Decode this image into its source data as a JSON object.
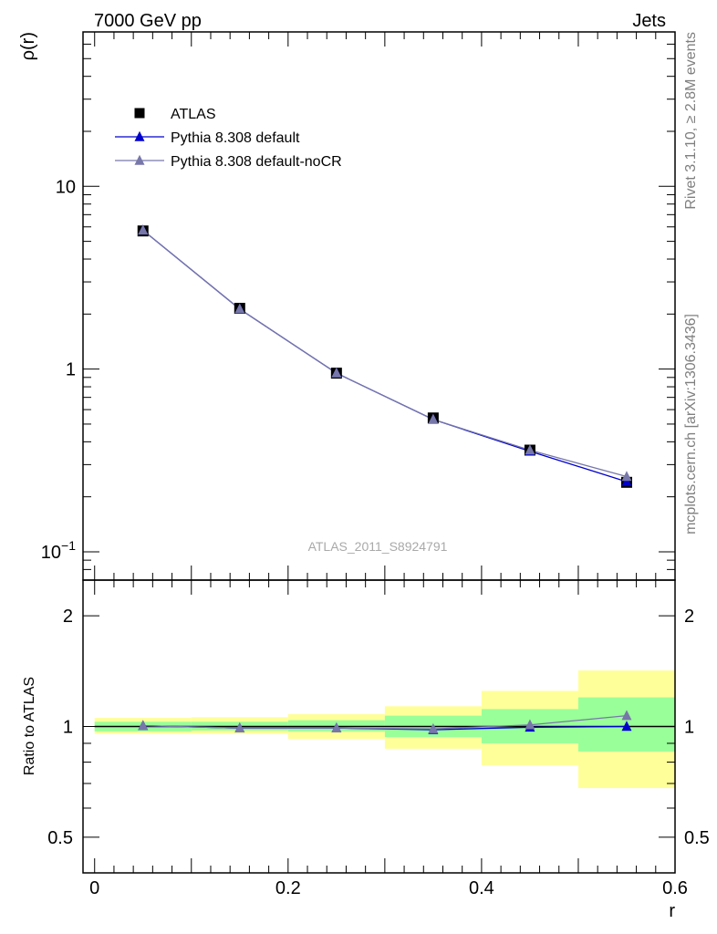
{
  "header": {
    "left": "7000 GeV pp",
    "right": "Jets"
  },
  "side_text": {
    "upper": "Rivet 3.1.10, ≥ 2.8M events",
    "lower": "mcplots.cern.ch [arXiv:1306.3436]"
  },
  "watermark": "ATLAS_2011_S8924791",
  "legend": [
    {
      "label": "ATLAS",
      "marker": "square",
      "color": "#000000"
    },
    {
      "label": "Pythia 8.308 default",
      "marker": "triangle",
      "color": "#0000cc"
    },
    {
      "label": "Pythia 8.308 default-noCR",
      "marker": "triangle",
      "color": "#7777aa"
    }
  ],
  "chart_data": [
    {
      "type": "scatter",
      "panel": "main",
      "ylabel": "ρ(r)",
      "xlim": [
        -0.012,
        0.6
      ],
      "ylim": [
        0.07,
        70
      ],
      "yscale": "log",
      "ytick_labels": [
        {
          "value": 10,
          "text": "10"
        },
        {
          "value": 1,
          "text": "1"
        },
        {
          "value": 0.1,
          "base": "10",
          "exp": "−1"
        }
      ],
      "x": [
        0.05,
        0.15,
        0.25,
        0.35,
        0.45,
        0.55
      ],
      "series": [
        {
          "name": "ATLAS",
          "color": "#000000",
          "values": [
            5.7,
            2.15,
            0.95,
            0.54,
            0.36,
            0.24
          ]
        },
        {
          "name": "Pythia 8.308 default",
          "color": "#0000cc",
          "values": [
            5.75,
            2.13,
            0.95,
            0.53,
            0.355,
            0.242
          ]
        },
        {
          "name": "Pythia 8.308 default-noCR",
          "color": "#7777aa",
          "values": [
            5.75,
            2.13,
            0.95,
            0.53,
            0.36,
            0.258
          ]
        }
      ]
    },
    {
      "type": "scatter",
      "panel": "ratio",
      "xlabel": "r",
      "ylabel": "Ratio to ATLAS",
      "xlim": [
        -0.012,
        0.6
      ],
      "ylim": [
        0.4,
        2.5
      ],
      "yscale": "log",
      "ytick_labels": [
        {
          "value": 2,
          "text": "2"
        },
        {
          "value": 1,
          "text": "1"
        },
        {
          "value": 0.5,
          "text": "0.5"
        }
      ],
      "xtick_labels": [
        {
          "value": 0,
          "text": "0"
        },
        {
          "value": 0.2,
          "text": "0.2"
        },
        {
          "value": 0.4,
          "text": "0.4"
        },
        {
          "value": 0.6,
          "text": "0.6"
        }
      ],
      "bands": {
        "bins": [
          [
            0.0,
            0.1
          ],
          [
            0.1,
            0.2
          ],
          [
            0.2,
            0.3
          ],
          [
            0.3,
            0.4
          ],
          [
            0.4,
            0.5
          ],
          [
            0.5,
            0.6
          ]
        ],
        "stat": [
          [
            0.97,
            1.03
          ],
          [
            0.975,
            1.03
          ],
          [
            0.97,
            1.04
          ],
          [
            0.935,
            1.07
          ],
          [
            0.9,
            1.115
          ],
          [
            0.855,
            1.2
          ]
        ],
        "total": [
          [
            0.955,
            1.055
          ],
          [
            0.955,
            1.06
          ],
          [
            0.925,
            1.08
          ],
          [
            0.87,
            1.135
          ],
          [
            0.785,
            1.25
          ],
          [
            0.68,
            1.42
          ]
        ],
        "stat_color": "#99ff99",
        "total_color": "#ffff99"
      },
      "x": [
        0.05,
        0.15,
        0.25,
        0.35,
        0.45,
        0.55
      ],
      "series": [
        {
          "name": "Pythia 8.308 default",
          "color": "#0000cc",
          "values": [
            1.005,
            0.99,
            0.99,
            0.98,
            0.995,
            1.0
          ]
        },
        {
          "name": "Pythia 8.308 default-noCR",
          "color": "#7777aa",
          "values": [
            1.005,
            0.99,
            0.99,
            0.985,
            1.01,
            1.07
          ]
        }
      ]
    }
  ]
}
